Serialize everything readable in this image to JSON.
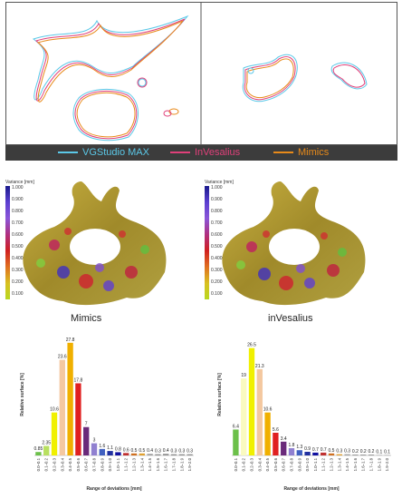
{
  "legend": [
    {
      "label": "VGStudio MAX",
      "color": "#5bc8e8"
    },
    {
      "label": "InVesalius",
      "color": "#e0407a"
    },
    {
      "label": "Mimics",
      "color": "#e88a1a"
    }
  ],
  "colorbar": {
    "title": "Variance [mm]",
    "ticks": [
      "1.000",
      "0.900",
      "0.800",
      "0.700",
      "0.600",
      "0.500",
      "0.400",
      "0.300",
      "0.200",
      "0.100"
    ]
  },
  "renders": {
    "left_label": "Mimics",
    "right_label": "inVesalius"
  },
  "chart_data": [
    {
      "type": "bar",
      "title": "",
      "xlabel": "Range of deviations [mm]",
      "ylabel": "Relative surface [%]",
      "ylim": [
        0,
        30
      ],
      "categories": [
        "0.0–0.1",
        "0.1–0.2",
        "0.2–0.3",
        "0.3–0.4",
        "0.4–0.5",
        "0.5–0.6",
        "0.6–0.7",
        "0.7–0.8",
        "0.8–0.9",
        "0.9–1.0",
        "1.0–1.1",
        "1.1–1.2",
        "1.2–1.3",
        "1.3–1.4",
        "1.4–1.5",
        "1.5–1.6",
        "1.6–1.7",
        "1.7–1.8",
        "1.8–1.9",
        "1.9–2.0"
      ],
      "values": [
        0.85,
        2.35,
        10.6,
        23.6,
        27.8,
        17.8,
        7,
        3,
        1.6,
        1.1,
        0.8,
        0.6,
        0.5,
        0.5,
        0.4,
        0.3,
        0.4,
        0.3,
        0.3,
        0.3
      ],
      "value_labels": [
        "0.85",
        "2.35",
        "10.6",
        "23.6",
        "27.8",
        "17.8",
        "7",
        "3",
        "1.6",
        "1.1",
        "0.8",
        "0.6",
        "0.5",
        "0.5",
        "0.4",
        "0.3",
        "0.4",
        "0.3",
        "0.3",
        "0.3"
      ],
      "colors": [
        "#6cc04a",
        "#b8e060",
        "#f0f000",
        "#f4c8a0",
        "#f0b000",
        "#e02020",
        "#6a2a7a",
        "#9080d0",
        "#4060c0",
        "#2030a0",
        "#1010a0",
        "#c03030",
        "#d07020",
        "#e0a030",
        "#a0a0a0",
        "#909090",
        "#909090",
        "#909090",
        "#909090",
        "#909090"
      ]
    },
    {
      "type": "bar",
      "title": "",
      "xlabel": "Range of deviations [mm]",
      "ylabel": "Relative surface [%]",
      "ylim": [
        0,
        30
      ],
      "categories": [
        "0.0–0.1",
        "0.1–0.2",
        "0.2–0.3",
        "0.3–0.4",
        "0.4–0.5",
        "0.5–0.6",
        "0.6–0.7",
        "0.7–0.8",
        "0.8–0.9",
        "0.9–1.0",
        "1.0–1.1",
        "1.1–1.2",
        "1.2–1.3",
        "1.3–1.4",
        "1.4–1.5",
        "1.5–1.6",
        "1.6–1.7",
        "1.7–1.8",
        "1.8–1.9",
        "1.9–2.0"
      ],
      "values": [
        6.4,
        19,
        26.5,
        21.3,
        10.6,
        5.6,
        3.4,
        1.8,
        1.3,
        0.9,
        0.7,
        0.7,
        0.5,
        0.3,
        0.3,
        0.2,
        0.2,
        0.2,
        0.1,
        0.1
      ],
      "value_labels": [
        "6.4",
        "19",
        "26.5",
        "21.3",
        "10.6",
        "5.6",
        "3.4",
        "1.8",
        "1.3",
        "0.9",
        "0.7",
        "0.7",
        "0.5",
        "0.3",
        "0.3",
        "0.2",
        "0.2",
        "0.2",
        "0.1",
        "0.1"
      ],
      "colors": [
        "#6cc04a",
        "#fafac0",
        "#f0f000",
        "#f4c8a0",
        "#f0b000",
        "#e02020",
        "#6a2a7a",
        "#9080d0",
        "#4060c0",
        "#2030a0",
        "#1010a0",
        "#c03030",
        "#d07020",
        "#e0a030",
        "#a0a0a0",
        "#909090",
        "#909090",
        "#909090",
        "#909090",
        "#909090"
      ]
    }
  ]
}
